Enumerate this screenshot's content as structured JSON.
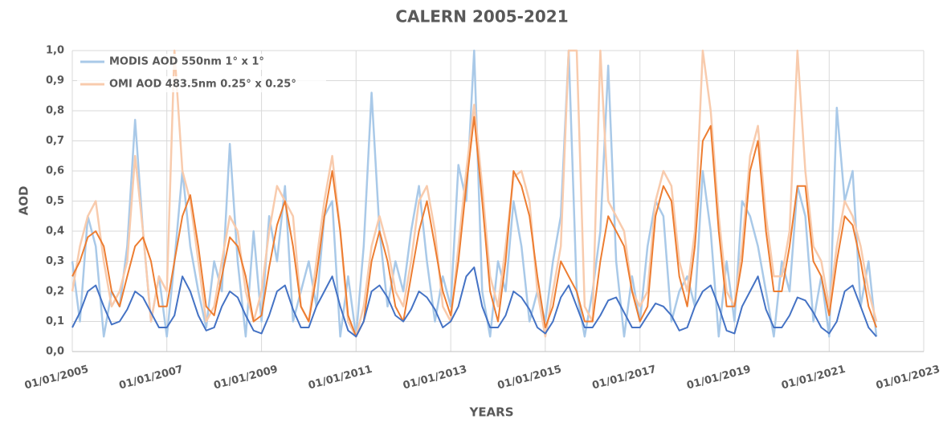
{
  "chart_data": {
    "type": "line",
    "title": "CALERN 2005-2021",
    "xlabel": "YEARS",
    "ylabel": "AOD",
    "x": [
      "01/01/2005",
      "01/03/2005",
      "01/05/2005",
      "01/07/2005",
      "01/09/2005",
      "01/11/2005",
      "01/01/2006",
      "01/03/2006",
      "01/05/2006",
      "01/07/2006",
      "01/09/2006",
      "01/11/2006",
      "01/01/2007",
      "01/03/2007",
      "01/05/2007",
      "01/07/2007",
      "01/09/2007",
      "01/11/2007",
      "01/01/2008",
      "01/03/2008",
      "01/05/2008",
      "01/07/2008",
      "01/09/2008",
      "01/11/2008",
      "01/01/2009",
      "01/03/2009",
      "01/05/2009",
      "01/07/2009",
      "01/09/2009",
      "01/11/2009",
      "01/01/2010",
      "01/03/2010",
      "01/05/2010",
      "01/07/2010",
      "01/09/2010",
      "01/11/2010",
      "01/01/2011",
      "01/03/2011",
      "01/05/2011",
      "01/07/2011",
      "01/09/2011",
      "01/11/2011",
      "01/01/2012",
      "01/03/2012",
      "01/05/2012",
      "01/07/2012",
      "01/09/2012",
      "01/11/2012",
      "01/01/2013",
      "01/03/2013",
      "01/05/2013",
      "01/07/2013",
      "01/09/2013",
      "01/11/2013",
      "01/01/2014",
      "01/03/2014",
      "01/05/2014",
      "01/07/2014",
      "01/09/2014",
      "01/11/2014",
      "01/01/2015",
      "01/03/2015",
      "01/05/2015",
      "01/07/2015",
      "01/09/2015",
      "01/11/2015",
      "01/01/2016",
      "01/03/2016",
      "01/05/2016",
      "01/07/2016",
      "01/09/2016",
      "01/11/2016",
      "01/01/2017",
      "01/03/2017",
      "01/05/2017",
      "01/07/2017",
      "01/09/2017",
      "01/11/2017",
      "01/01/2018",
      "01/03/2018",
      "01/05/2018",
      "01/07/2018",
      "01/09/2018",
      "01/11/2018",
      "01/01/2019",
      "01/03/2019",
      "01/05/2019",
      "01/07/2019",
      "01/09/2019",
      "01/11/2019",
      "01/01/2020",
      "01/03/2020",
      "01/05/2020",
      "01/07/2020",
      "01/09/2020",
      "01/11/2020",
      "01/01/2021",
      "01/03/2021",
      "01/05/2021",
      "01/07/2021",
      "01/09/2021",
      "01/11/2021",
      "01/01/2022"
    ],
    "series": [
      {
        "name": "MODIS AOD 550nm 1° x 1°",
        "color": "#a9c9e8",
        "width": 2.5,
        "values": [
          0.3,
          0.1,
          0.45,
          0.35,
          0.05,
          0.2,
          0.15,
          0.35,
          0.77,
          0.4,
          0.1,
          0.25,
          0.05,
          0.3,
          0.6,
          0.35,
          0.2,
          0.08,
          0.3,
          0.2,
          0.69,
          0.3,
          0.05,
          0.4,
          0.1,
          0.45,
          0.3,
          0.55,
          0.1,
          0.2,
          0.3,
          0.15,
          0.45,
          0.5,
          0.05,
          0.25,
          0.05,
          0.35,
          0.86,
          0.4,
          0.15,
          0.3,
          0.2,
          0.4,
          0.55,
          0.3,
          0.1,
          0.25,
          0.15,
          0.62,
          0.5,
          1.0,
          0.2,
          0.05,
          0.3,
          0.2,
          0.5,
          0.35,
          0.1,
          0.2,
          0.1,
          0.3,
          0.45,
          1.0,
          0.2,
          0.05,
          0.2,
          0.4,
          0.95,
          0.3,
          0.05,
          0.25,
          0.1,
          0.35,
          0.5,
          0.45,
          0.1,
          0.2,
          0.25,
          0.15,
          0.6,
          0.4,
          0.05,
          0.3,
          0.1,
          0.5,
          0.45,
          0.35,
          0.2,
          0.05,
          0.3,
          0.2,
          0.55,
          0.45,
          0.1,
          0.25,
          0.05,
          0.81,
          0.5,
          0.6,
          0.15,
          0.3,
          0.05
        ]
      },
      {
        "name": "OMI AOD 483.5nm 0.25° x 0.25°",
        "color": "#f8cbad",
        "width": 2.5,
        "values": [
          0.2,
          0.35,
          0.45,
          0.5,
          0.3,
          0.15,
          0.2,
          0.3,
          0.65,
          0.4,
          0.1,
          0.25,
          0.2,
          1.0,
          0.6,
          0.5,
          0.3,
          0.1,
          0.15,
          0.3,
          0.45,
          0.4,
          0.2,
          0.1,
          0.2,
          0.4,
          0.55,
          0.5,
          0.45,
          0.15,
          0.1,
          0.3,
          0.5,
          0.65,
          0.4,
          0.1,
          0.05,
          0.15,
          0.35,
          0.45,
          0.35,
          0.2,
          0.15,
          0.3,
          0.5,
          0.55,
          0.4,
          0.15,
          0.1,
          0.35,
          0.6,
          0.82,
          0.55,
          0.25,
          0.15,
          0.35,
          0.58,
          0.6,
          0.5,
          0.2,
          0.05,
          0.2,
          0.35,
          1.0,
          1.0,
          0.15,
          0.1,
          1.0,
          0.5,
          0.45,
          0.4,
          0.2,
          0.15,
          0.2,
          0.5,
          0.6,
          0.55,
          0.3,
          0.2,
          0.4,
          1.0,
          0.8,
          0.45,
          0.2,
          0.15,
          0.35,
          0.65,
          0.75,
          0.45,
          0.25,
          0.25,
          0.4,
          1.0,
          0.6,
          0.35,
          0.3,
          0.15,
          0.35,
          0.5,
          0.45,
          0.35,
          0.2,
          0.1
        ]
      },
      {
        "color": "#ed7d31",
        "width": 2,
        "values": [
          0.25,
          0.3,
          0.38,
          0.4,
          0.35,
          0.2,
          0.15,
          0.25,
          0.35,
          0.38,
          0.3,
          0.15,
          0.15,
          0.3,
          0.45,
          0.52,
          0.35,
          0.15,
          0.12,
          0.25,
          0.38,
          0.35,
          0.25,
          0.1,
          0.12,
          0.28,
          0.42,
          0.5,
          0.35,
          0.15,
          0.1,
          0.25,
          0.45,
          0.6,
          0.4,
          0.12,
          0.05,
          0.1,
          0.3,
          0.4,
          0.3,
          0.15,
          0.1,
          0.25,
          0.4,
          0.5,
          0.35,
          0.2,
          0.12,
          0.3,
          0.55,
          0.78,
          0.5,
          0.2,
          0.1,
          0.3,
          0.6,
          0.55,
          0.45,
          0.25,
          0.08,
          0.15,
          0.3,
          0.25,
          0.2,
          0.1,
          0.1,
          0.3,
          0.45,
          0.4,
          0.35,
          0.2,
          0.1,
          0.15,
          0.45,
          0.55,
          0.5,
          0.25,
          0.15,
          0.35,
          0.7,
          0.75,
          0.4,
          0.15,
          0.15,
          0.3,
          0.6,
          0.7,
          0.4,
          0.2,
          0.2,
          0.35,
          0.55,
          0.55,
          0.3,
          0.25,
          0.12,
          0.3,
          0.45,
          0.42,
          0.3,
          0.15,
          0.08
        ]
      },
      {
        "color": "#4472c4",
        "width": 2,
        "values": [
          0.08,
          0.13,
          0.2,
          0.22,
          0.15,
          0.09,
          0.1,
          0.14,
          0.2,
          0.18,
          0.13,
          0.08,
          0.08,
          0.12,
          0.25,
          0.2,
          0.12,
          0.07,
          0.08,
          0.15,
          0.2,
          0.18,
          0.12,
          0.07,
          0.06,
          0.12,
          0.2,
          0.22,
          0.14,
          0.08,
          0.08,
          0.15,
          0.2,
          0.25,
          0.15,
          0.07,
          0.05,
          0.1,
          0.2,
          0.22,
          0.18,
          0.12,
          0.1,
          0.14,
          0.2,
          0.18,
          0.14,
          0.08,
          0.1,
          0.15,
          0.25,
          0.28,
          0.15,
          0.08,
          0.08,
          0.12,
          0.2,
          0.18,
          0.14,
          0.08,
          0.06,
          0.1,
          0.18,
          0.22,
          0.15,
          0.08,
          0.08,
          0.12,
          0.17,
          0.18,
          0.13,
          0.08,
          0.08,
          0.12,
          0.16,
          0.15,
          0.12,
          0.07,
          0.08,
          0.15,
          0.2,
          0.22,
          0.15,
          0.07,
          0.06,
          0.15,
          0.2,
          0.25,
          0.14,
          0.08,
          0.08,
          0.12,
          0.18,
          0.17,
          0.13,
          0.08,
          0.06,
          0.1,
          0.2,
          0.22,
          0.15,
          0.08,
          0.05
        ]
      }
    ],
    "xlim": [
      "01/01/2005",
      "01/01/2023"
    ],
    "xticks": [
      "01/01/2005",
      "01/01/2007",
      "01/01/2009",
      "01/01/2011",
      "01/01/2013",
      "01/01/2015",
      "01/01/2017",
      "01/01/2019",
      "01/01/2021",
      "01/01/2023"
    ],
    "ylim": [
      0,
      1
    ],
    "yticks": [
      {
        "value": 0,
        "label": "0,0"
      },
      {
        "value": 0.1,
        "label": "0,1"
      },
      {
        "value": 0.2,
        "label": "0,2"
      },
      {
        "value": 0.3,
        "label": "0,3"
      },
      {
        "value": 0.4,
        "label": "0,4"
      },
      {
        "value": 0.5,
        "label": "0,5"
      },
      {
        "value": 0.6,
        "label": "0,6"
      },
      {
        "value": 0.7,
        "label": "0,7"
      },
      {
        "value": 0.8,
        "label": "0,8"
      },
      {
        "value": 0.9,
        "label": "0,9"
      },
      {
        "value": 1,
        "label": "1,0"
      }
    ],
    "grid": true,
    "legend": "upper left"
  }
}
